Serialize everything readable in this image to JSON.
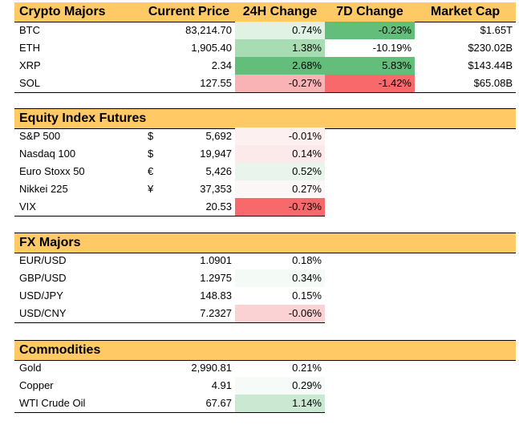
{
  "colors": {
    "header_bg": "#ffc966",
    "green_strong": "#63be7b",
    "green_mid": "#a8dcb3",
    "green_light": "#dff2e3",
    "red_strong": "#f8696b",
    "red_mid": "#f9b3b4",
    "red_light": "#fce4e5",
    "red_faint": "#fdf0f0"
  },
  "crypto": {
    "title": "Crypto Majors",
    "headers": [
      "Current Price",
      "24H Change",
      "7D Change",
      "Market Cap"
    ],
    "rows": [
      {
        "name": "BTC",
        "price": "83,214.70",
        "d1": "0.74%",
        "d7": "-0.23%",
        "cap": "$1.65T"
      },
      {
        "name": "ETH",
        "price": "1,905.40",
        "d1": "1.38%",
        "d7": "-10.19%",
        "cap": "$230.02B"
      },
      {
        "name": "XRP",
        "price": "2.34",
        "d1": "2.68%",
        "d7": "5.83%",
        "cap": "$143.44B"
      },
      {
        "name": "SOL",
        "price": "127.55",
        "d1": "-0.27%",
        "d7": "-1.42%",
        "cap": "$65.08B"
      }
    ]
  },
  "equity": {
    "title": "Equity Index Futures",
    "rows": [
      {
        "name": "S&P 500",
        "cur": "$",
        "price": "5,692",
        "d1": "-0.01%"
      },
      {
        "name": "Nasdaq 100",
        "cur": "$",
        "price": "19,947",
        "d1": "0.14%"
      },
      {
        "name": "Euro Stoxx 50",
        "cur": "€",
        "price": "5,426",
        "d1": "0.52%"
      },
      {
        "name": "Nikkei 225",
        "cur": "¥",
        "price": "37,353",
        "d1": "0.27%"
      },
      {
        "name": "VIX",
        "cur": "",
        "price": "20.53",
        "d1": "-0.73%"
      }
    ]
  },
  "fx": {
    "title": "FX Majors",
    "rows": [
      {
        "name": "EUR/USD",
        "price": "1.0901",
        "d1": "0.18%"
      },
      {
        "name": "GBP/USD",
        "price": "1.2975",
        "d1": "0.34%"
      },
      {
        "name": "USD/JPY",
        "price": "148.83",
        "d1": "0.15%"
      },
      {
        "name": "USD/CNY",
        "price": "7.2327",
        "d1": "-0.06%"
      }
    ]
  },
  "commodities": {
    "title": "Commodities",
    "rows": [
      {
        "name": "Gold",
        "price": "2,990.81",
        "d1": "0.21%"
      },
      {
        "name": "Copper",
        "price": "4.91",
        "d1": "0.29%"
      },
      {
        "name": "WTI Crude Oil",
        "price": "67.67",
        "d1": "1.14%"
      }
    ]
  }
}
